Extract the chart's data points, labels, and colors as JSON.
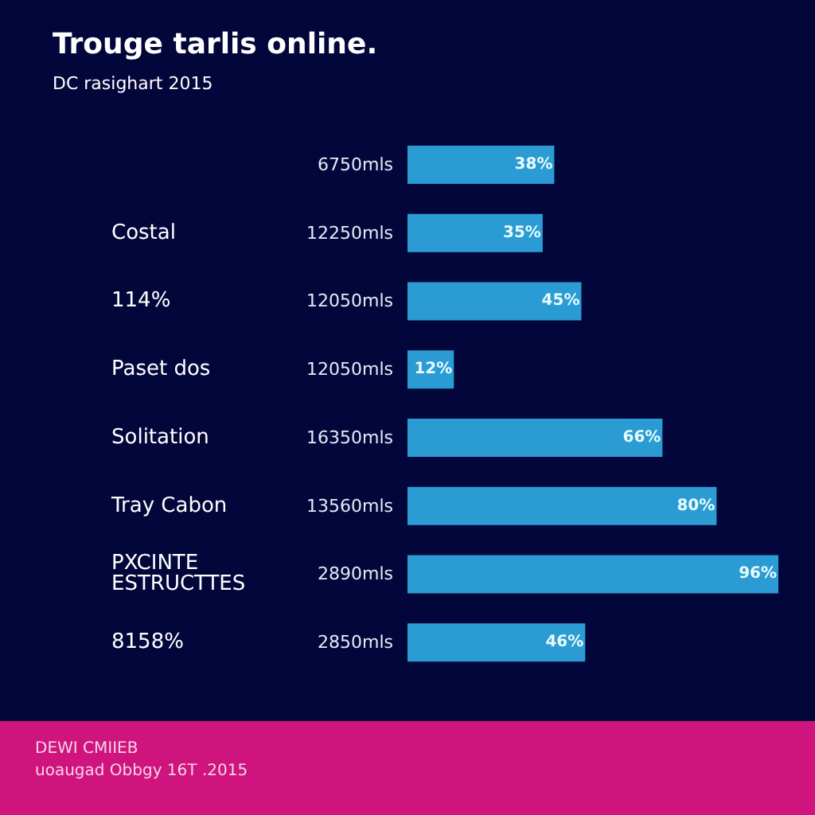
{
  "chart_data": {
    "type": "bar",
    "orientation": "horizontal",
    "title": "Trouge tarlis online.",
    "subtitle": "DC rasighart 2015",
    "categories": [
      null,
      "Costal",
      "114%",
      "Paset dos",
      "Solitation",
      "Tray Cabon",
      "PXCINTE ESTRUCTTES",
      "8158%"
    ],
    "values": [
      38,
      35,
      45,
      12,
      66,
      80,
      96,
      46
    ],
    "value_labels": [
      "38%",
      "35%",
      "45%",
      "12%",
      "66%",
      "80%",
      "96%",
      "46%"
    ],
    "color": "#2a9bd3",
    "annotations": [
      {
        "text": "6750mls"
      },
      {
        "text": "12250mls"
      },
      {
        "text": "12050mls"
      },
      {
        "text": "12050mls"
      },
      {
        "text": "16350mls"
      },
      {
        "text": "13560mls"
      },
      {
        "text": "2890mls"
      },
      {
        "text": "2850mls"
      },
      "DEWI CMIIEB",
      "uoaugad Obbgy 16T .2015"
    ]
  }
}
